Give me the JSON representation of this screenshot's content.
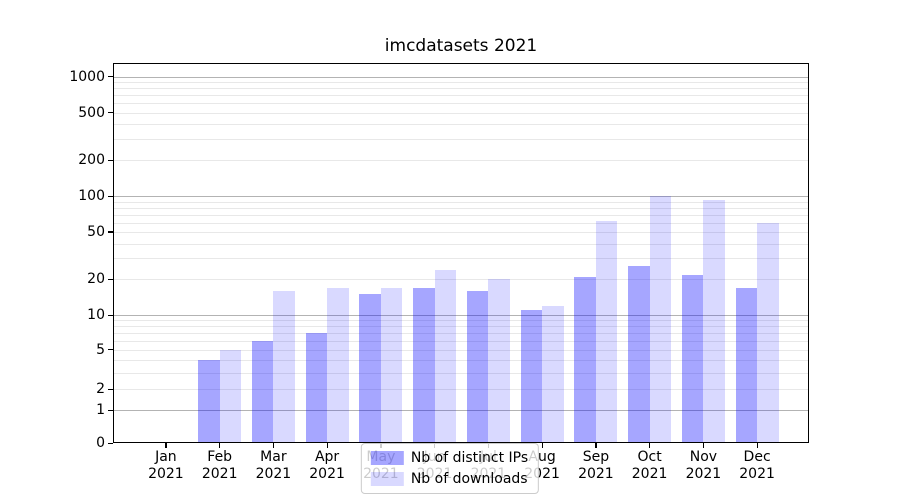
{
  "chart_data": {
    "type": "bar",
    "title": "imcdatasets 2021",
    "categories": [
      "Jan 2021",
      "Feb 2021",
      "Mar 2021",
      "Apr 2021",
      "May 2021",
      "Jun 2021",
      "Jul 2021",
      "Aug 2021",
      "Sep 2021",
      "Oct 2021",
      "Nov 2021",
      "Dec 2021"
    ],
    "series": [
      {
        "name": "Nb of distinct IPs",
        "color": "#a6a6ff",
        "rgba": "rgba(0,0,255,0.35)",
        "values": [
          0,
          4,
          6,
          7,
          15,
          17,
          16,
          11,
          21,
          26,
          22,
          17
        ]
      },
      {
        "name": "Nb of downloads",
        "color": "#d9d9ff",
        "rgba": "rgba(0,0,255,0.15)",
        "values": [
          0,
          5,
          16,
          17,
          17,
          24,
          20,
          12,
          62,
          100,
          92,
          59
        ]
      }
    ],
    "y_axis": {
      "scale": "symlog",
      "tick_values": [
        0,
        1,
        2,
        5,
        10,
        20,
        50,
        100,
        200,
        500,
        1000
      ],
      "tick_labels": [
        "0",
        "1",
        "2",
        "5",
        "10",
        "20",
        "50",
        "100",
        "200",
        "500",
        "1000"
      ],
      "range": [
        0,
        1000
      ]
    },
    "x_axis": {
      "tick_labels_two_line": true
    },
    "grid": {
      "enabled": true,
      "major_color": "#b3b3b3",
      "minor_color": "#e8e8e8"
    },
    "legend": {
      "position": "lower center",
      "items": [
        "Nb of distinct IPs",
        "Nb of downloads"
      ]
    }
  },
  "colors": {
    "background": "#ffffff",
    "axis": "#000000",
    "text": "#000000"
  }
}
